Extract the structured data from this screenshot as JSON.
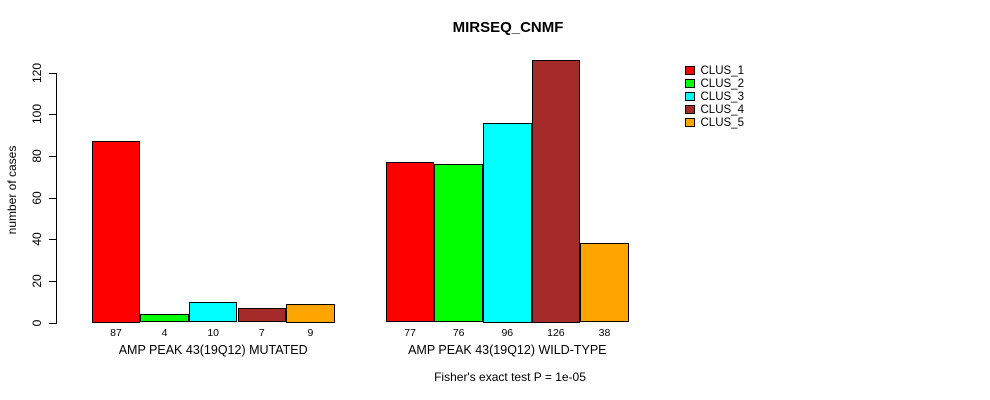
{
  "chart_data": {
    "type": "bar",
    "title": "MIRSEQ_CNMF",
    "ylabel": "number of cases",
    "xlabel": "",
    "ylim": [
      0,
      120
    ],
    "yticks": [
      0,
      20,
      40,
      60,
      80,
      100,
      120
    ],
    "grid": false,
    "legend_position": "right-top",
    "categories": [
      "AMP PEAK 43(19Q12) MUTATED",
      "AMP PEAK 43(19Q12) WILD-TYPE"
    ],
    "series": [
      {
        "name": "CLUS_1",
        "color": "#FF0000",
        "values": [
          87,
          77
        ]
      },
      {
        "name": "CLUS_2",
        "color": "#00FF00",
        "values": [
          4,
          76
        ]
      },
      {
        "name": "CLUS_3",
        "color": "#00FFFF",
        "values": [
          10,
          96
        ]
      },
      {
        "name": "CLUS_4",
        "color": "#A52A2A",
        "values": [
          7,
          126
        ]
      },
      {
        "name": "CLUS_5",
        "color": "#FFA500",
        "values": [
          9,
          38
        ]
      }
    ],
    "bar_value_labels": {
      "group_1": [
        87,
        4,
        10,
        7,
        9
      ],
      "group_2": [
        77,
        76,
        96,
        126,
        38
      ]
    },
    "annotation": "Fisher's exact test P = 1e-05",
    "bar_border_color": "#000000",
    "axis_color": "#000000",
    "background_color": "#FFFFFF",
    "text_color": "#000000"
  }
}
